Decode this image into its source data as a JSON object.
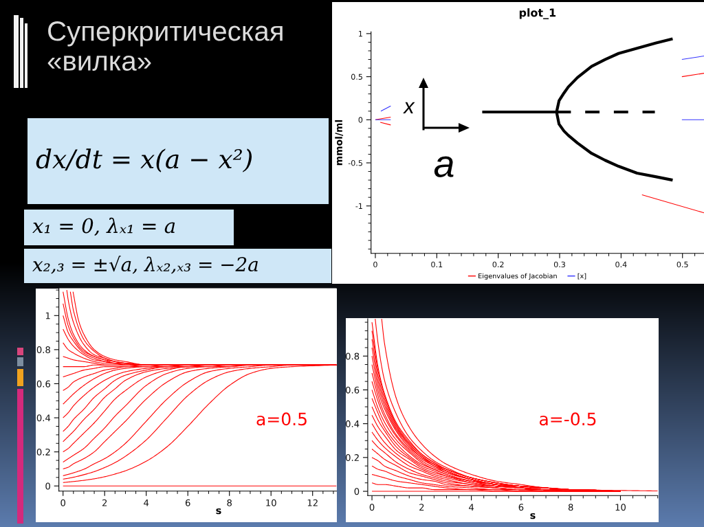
{
  "chart_data": [
    {
      "type": "other",
      "title": "Суперкритическая «вилка»",
      "annotations": [
        "dx/dt = x(a − x²)",
        "x₁ = 0, λₓ₁ = a",
        "x₂,₃ = ±√a, λₓ₂,ₓ₃ = −2a"
      ]
    },
    {
      "type": "line",
      "title": "plot_1",
      "ylabel": "mmol/ml",
      "xlim": [
        -0.007,
        0.535
      ],
      "ylim": [
        -1.55,
        1.02
      ],
      "xticks": [
        0,
        0.1,
        0.2,
        0.3,
        0.4,
        0.5
      ],
      "yticks": [
        -1,
        -0.5,
        0,
        0.5,
        1
      ],
      "legend": "bottom",
      "annotations": [
        "x",
        "a"
      ],
      "series": [
        {
          "name": "Eigenvalues of Jacobian",
          "color": "#ff0000",
          "x": [
            0,
            0.025
          ],
          "values": [
            0,
            0.03
          ]
        },
        {
          "color": "#ff0000",
          "x": [
            0.008,
            0.025
          ],
          "values": [
            -0.03,
            -0.06
          ]
        },
        {
          "color": "#ff0000",
          "x": [
            0.499,
            0.535
          ],
          "values": [
            0.5,
            0.54
          ]
        },
        {
          "color": "#ff0000",
          "x": [
            0.434,
            0.535
          ],
          "values": [
            -0.87,
            -1.08
          ]
        },
        {
          "name": "[x]",
          "color": "#3333ff",
          "x": [
            0,
            0.025
          ],
          "values": [
            0,
            0
          ]
        },
        {
          "color": "#3333ff",
          "x": [
            0.009,
            0.025
          ],
          "values": [
            0.1,
            0.16
          ]
        },
        {
          "color": "#3333ff",
          "x": [
            0.499,
            0.535
          ],
          "values": [
            0.7,
            0.74
          ]
        },
        {
          "color": "#3333ff",
          "x": [
            0.499,
            0.535
          ],
          "values": [
            0,
            0
          ]
        },
        {
          "color": "#000000",
          "x": [
            0.174,
            0.295
          ],
          "values": [
            0.09,
            0.09
          ]
        },
        {
          "color": "#000000",
          "line_style": "dashed",
          "x": [
            0.295,
            0.455
          ],
          "values": [
            0.09,
            0.09
          ]
        },
        {
          "color": "#000000",
          "x": [
            0.484,
            0.456,
            0.426,
            0.396,
            0.374,
            0.352,
            0.329,
            0.314,
            0.307,
            0.299,
            0.295,
            0.299,
            0.307,
            0.314,
            0.329,
            0.352,
            0.374,
            0.396,
            0.426,
            0.456,
            0.484
          ],
          "values": [
            0.94,
            0.89,
            0.83,
            0.77,
            0.7,
            0.62,
            0.49,
            0.38,
            0.31,
            0.22,
            0.09,
            -0.05,
            -0.13,
            -0.18,
            -0.27,
            -0.39,
            -0.47,
            -0.54,
            -0.62,
            -0.66,
            -0.7
          ]
        }
      ]
    },
    {
      "type": "line",
      "xlabel": "s",
      "color": "#ff0000",
      "xlim": [
        -0.2,
        13.15
      ],
      "ylim": [
        -0.03,
        1.16
      ],
      "xticks": [
        0,
        2,
        4,
        6,
        8,
        10,
        12
      ],
      "yticks": [
        0,
        0.2,
        0.4,
        0.6,
        0.8,
        1
      ],
      "annotations": [
        "a=0.5"
      ],
      "x": [
        0,
        0.25,
        0.5,
        1,
        1.5,
        2,
        2.5,
        3,
        4,
        5,
        6,
        7,
        8,
        9,
        10,
        11,
        13.15
      ],
      "series": [
        {
          "values": [
            0,
            0,
            0,
            0,
            0,
            0,
            0,
            0,
            0,
            0,
            0,
            0,
            0,
            0,
            0,
            0,
            0
          ]
        },
        {
          "values": [
            0.02,
            0.023,
            0.026,
            0.033,
            0.042,
            0.054,
            0.07,
            0.089,
            0.145,
            0.23,
            0.35,
            0.48,
            0.59,
            0.66,
            0.69,
            0.7,
            0.71
          ]
        },
        {
          "values": [
            0.04,
            0.045,
            0.051,
            0.066,
            0.084,
            0.108,
            0.137,
            0.174,
            0.27,
            0.4,
            0.53,
            0.62,
            0.67,
            0.69,
            0.7,
            0.71,
            0.71
          ]
        },
        {
          "values": [
            0.06,
            0.068,
            0.077,
            0.098,
            0.13,
            0.16,
            0.2,
            0.25,
            0.38,
            0.51,
            0.61,
            0.67,
            0.69,
            0.7,
            0.71,
            0.71,
            0.71
          ]
        },
        {
          "values": [
            0.1,
            0.11,
            0.13,
            0.16,
            0.2,
            0.26,
            0.32,
            0.38,
            0.51,
            0.61,
            0.67,
            0.69,
            0.7,
            0.71,
            0.71,
            0.71,
            0.71
          ]
        },
        {
          "values": [
            0.14,
            0.16,
            0.18,
            0.22,
            0.28,
            0.34,
            0.41,
            0.47,
            0.59,
            0.66,
            0.69,
            0.7,
            0.7,
            0.71,
            0.71,
            0.71,
            0.71
          ]
        },
        {
          "values": [
            0.2,
            0.22,
            0.25,
            0.31,
            0.37,
            0.44,
            0.51,
            0.56,
            0.64,
            0.68,
            0.7,
            0.7,
            0.71,
            0.71,
            0.71,
            0.71,
            0.71
          ]
        },
        {
          "values": [
            0.26,
            0.29,
            0.32,
            0.39,
            0.45,
            0.52,
            0.57,
            0.62,
            0.67,
            0.69,
            0.7,
            0.71,
            0.71,
            0.71,
            0.71,
            0.71,
            0.71
          ]
        },
        {
          "values": [
            0.32,
            0.35,
            0.39,
            0.45,
            0.52,
            0.57,
            0.62,
            0.65,
            0.68,
            0.7,
            0.7,
            0.71,
            0.71,
            0.71,
            0.71,
            0.71,
            0.71
          ]
        },
        {
          "values": [
            0.4,
            0.43,
            0.47,
            0.53,
            0.58,
            0.62,
            0.65,
            0.67,
            0.69,
            0.7,
            0.71,
            0.71,
            0.71,
            0.71,
            0.71,
            0.71,
            0.71
          ]
        },
        {
          "values": [
            0.48,
            0.51,
            0.54,
            0.59,
            0.63,
            0.66,
            0.68,
            0.69,
            0.7,
            0.7,
            0.71,
            0.71,
            0.71,
            0.71,
            0.71,
            0.71,
            0.71
          ]
        },
        {
          "values": [
            0.56,
            0.58,
            0.61,
            0.64,
            0.66,
            0.68,
            0.69,
            0.7,
            0.7,
            0.71,
            0.71,
            0.71,
            0.71,
            0.71,
            0.71,
            0.71,
            0.71
          ]
        },
        {
          "values": [
            0.64,
            0.65,
            0.66,
            0.68,
            0.69,
            0.7,
            0.7,
            0.7,
            0.71,
            0.71,
            0.71,
            0.71,
            0.71,
            0.71,
            0.71,
            0.71,
            0.71
          ]
        },
        {
          "values": [
            0.7,
            0.7,
            0.7,
            0.7,
            0.71,
            0.71,
            0.71,
            0.71,
            0.71,
            0.71,
            0.71,
            0.71,
            0.71,
            0.71,
            0.71,
            0.71,
            0.71
          ]
        },
        {
          "values": [
            0.76,
            0.75,
            0.74,
            0.73,
            0.72,
            0.71,
            0.71,
            0.71,
            0.71,
            0.71,
            0.71,
            0.71,
            0.71,
            0.71,
            0.71,
            0.71,
            0.71
          ]
        },
        {
          "values": [
            0.84,
            0.8,
            0.78,
            0.75,
            0.73,
            0.72,
            0.72,
            0.71,
            0.71,
            0.71,
            0.71,
            0.71,
            0.71,
            0.71,
            0.71,
            0.71,
            0.71
          ]
        },
        {
          "values": [
            0.92,
            0.86,
            0.82,
            0.77,
            0.74,
            0.73,
            0.72,
            0.71,
            0.71,
            0.71,
            0.71,
            0.71,
            0.71,
            0.71,
            0.71,
            0.71,
            0.71
          ]
        },
        {
          "values": [
            1,
            0.9,
            0.85,
            0.78,
            0.75,
            0.73,
            0.72,
            0.72,
            0.71,
            0.71,
            0.71,
            0.71,
            0.71,
            0.71,
            0.71,
            0.71,
            0.71
          ]
        },
        {
          "values": [
            1.07,
            0.94,
            0.87,
            0.79,
            0.76,
            0.74,
            0.72,
            0.72,
            0.71,
            0.71,
            0.71,
            0.71,
            0.71,
            0.71,
            0.71,
            0.71,
            0.71
          ]
        },
        {
          "values": [
            1.14,
            0.98,
            0.89,
            0.8,
            0.76,
            0.74,
            0.73,
            0.72,
            0.71,
            0.71,
            0.71,
            0.71,
            0.71,
            0.71,
            0.71,
            0.71,
            0.71
          ]
        },
        {
          "x": [
            0.18,
            0.25,
            0.5,
            1,
            1.5,
            2,
            2.5,
            3,
            4,
            5,
            13.15
          ],
          "values": [
            1.15,
            1.09,
            0.96,
            0.83,
            0.77,
            0.75,
            0.73,
            0.72,
            0.71,
            0.71,
            0.71
          ]
        },
        {
          "x": [
            0.35,
            0.5,
            1,
            1.5,
            2,
            2.5,
            3,
            4,
            5,
            13.15
          ],
          "values": [
            1.14,
            1.03,
            0.86,
            0.79,
            0.75,
            0.73,
            0.72,
            0.71,
            0.71,
            0.71
          ]
        },
        {
          "x": [
            0.48,
            0.75,
            1,
            1.5,
            2,
            2.5,
            3,
            4,
            5,
            6,
            13.15
          ],
          "values": [
            1.14,
            0.97,
            0.89,
            0.8,
            0.76,
            0.74,
            0.73,
            0.71,
            0.71,
            0.71,
            0.71
          ]
        }
      ]
    },
    {
      "type": "line",
      "xlabel": "s",
      "color": "#ff0000",
      "xlim": [
        -0.17,
        11.5
      ],
      "ylim": [
        -0.025,
        1.02
      ],
      "xticks": [
        0,
        2,
        4,
        6,
        8,
        10
      ],
      "yticks": [
        0,
        0.2,
        0.4,
        0.6,
        0.8
      ],
      "annotations": [
        "a=-0.5"
      ],
      "x": [
        0,
        0.25,
        0.5,
        1,
        1.5,
        2,
        2.5,
        3,
        4,
        5,
        6,
        7,
        8,
        10
      ],
      "series": [
        {
          "values": [
            0,
            0,
            0,
            0,
            0,
            0,
            0,
            0,
            0,
            0,
            0,
            0,
            0,
            0
          ]
        },
        {
          "values": [
            0.05,
            0.04,
            0.04,
            0.03,
            0.02,
            0.02,
            0.01,
            0.01,
            0.01,
            0,
            0,
            0,
            0,
            0
          ]
        },
        {
          "values": [
            0.1,
            0.09,
            0.08,
            0.06,
            0.05,
            0.04,
            0.03,
            0.02,
            0.01,
            0.01,
            0,
            0,
            0,
            0
          ]
        },
        {
          "values": [
            0.15,
            0.13,
            0.12,
            0.09,
            0.07,
            0.05,
            0.04,
            0.03,
            0.02,
            0.01,
            0.01,
            0,
            0,
            0
          ]
        },
        {
          "values": [
            0.2,
            0.18,
            0.15,
            0.12,
            0.09,
            0.07,
            0.06,
            0.04,
            0.03,
            0.02,
            0.01,
            0.01,
            0,
            0
          ]
        },
        {
          "values": [
            0.25,
            0.22,
            0.19,
            0.15,
            0.11,
            0.09,
            0.07,
            0.05,
            0.03,
            0.02,
            0.01,
            0.01,
            0,
            0
          ]
        },
        {
          "values": [
            0.3,
            0.26,
            0.23,
            0.17,
            0.13,
            0.1,
            0.08,
            0.06,
            0.04,
            0.02,
            0.01,
            0.01,
            0.01,
            0
          ]
        },
        {
          "values": [
            0.35,
            0.3,
            0.26,
            0.2,
            0.15,
            0.12,
            0.09,
            0.07,
            0.04,
            0.03,
            0.02,
            0.01,
            0.01,
            0
          ]
        },
        {
          "values": [
            0.4,
            0.34,
            0.29,
            0.22,
            0.17,
            0.13,
            0.1,
            0.08,
            0.05,
            0.03,
            0.02,
            0.01,
            0.01,
            0
          ]
        },
        {
          "values": [
            0.45,
            0.38,
            0.33,
            0.24,
            0.19,
            0.14,
            0.11,
            0.09,
            0.05,
            0.03,
            0.02,
            0.01,
            0.01,
            0
          ]
        },
        {
          "values": [
            0.5,
            0.42,
            0.36,
            0.26,
            0.2,
            0.15,
            0.12,
            0.09,
            0.06,
            0.03,
            0.02,
            0.01,
            0.01,
            0
          ]
        },
        {
          "values": [
            0.55,
            0.46,
            0.38,
            0.28,
            0.21,
            0.16,
            0.13,
            0.1,
            0.06,
            0.04,
            0.02,
            0.01,
            0.01,
            0
          ]
        },
        {
          "values": [
            0.6,
            0.49,
            0.41,
            0.3,
            0.23,
            0.17,
            0.13,
            0.1,
            0.06,
            0.04,
            0.02,
            0.01,
            0.01,
            0
          ]
        },
        {
          "values": [
            0.65,
            0.53,
            0.44,
            0.32,
            0.24,
            0.18,
            0.14,
            0.11,
            0.07,
            0.04,
            0.02,
            0.01,
            0.01,
            0
          ]
        },
        {
          "values": [
            0.7,
            0.56,
            0.46,
            0.33,
            0.25,
            0.19,
            0.15,
            0.11,
            0.07,
            0.04,
            0.02,
            0.02,
            0.01,
            0
          ]
        },
        {
          "values": [
            0.75,
            0.59,
            0.49,
            0.35,
            0.26,
            0.2,
            0.15,
            0.12,
            0.07,
            0.04,
            0.03,
            0.02,
            0.01,
            0
          ]
        },
        {
          "values": [
            0.8,
            0.62,
            0.51,
            0.36,
            0.27,
            0.2,
            0.16,
            0.12,
            0.07,
            0.04,
            0.03,
            0.02,
            0.01,
            0
          ]
        },
        {
          "values": [
            0.85,
            0.65,
            0.53,
            0.37,
            0.28,
            0.21,
            0.16,
            0.12,
            0.07,
            0.04,
            0.03,
            0.02,
            0.01,
            0
          ]
        },
        {
          "values": [
            0.9,
            0.68,
            0.55,
            0.38,
            0.28,
            0.21,
            0.16,
            0.13,
            0.08,
            0.05,
            0.03,
            0.02,
            0.01,
            0
          ]
        },
        {
          "values": [
            0.95,
            0.71,
            0.57,
            0.39,
            0.29,
            0.22,
            0.17,
            0.13,
            0.08,
            0.05,
            0.03,
            0.02,
            0.01,
            0
          ]
        },
        {
          "values": [
            1,
            0.73,
            0.58,
            0.4,
            0.3,
            0.22,
            0.17,
            0.13,
            0.08,
            0.05,
            0.03,
            0.02,
            0.01,
            0
          ]
        },
        {
          "x": [
            0.13,
            0.25,
            0.5,
            1,
            1.5,
            2,
            2.5,
            3,
            4,
            5,
            6,
            7,
            8,
            10
          ],
          "values": [
            1.02,
            0.87,
            0.66,
            0.45,
            0.32,
            0.24,
            0.18,
            0.14,
            0.08,
            0.05,
            0.03,
            0.02,
            0.01,
            0
          ]
        },
        {
          "x": [
            0.39,
            0.5,
            1,
            1.5,
            2,
            2.5,
            3,
            4,
            5,
            6,
            7,
            8,
            10,
            11.5
          ],
          "values": [
            1.02,
            0.88,
            0.54,
            0.38,
            0.28,
            0.21,
            0.16,
            0.1,
            0.06,
            0.04,
            0.02,
            0.01,
            0.005,
            0.002
          ]
        }
      ]
    }
  ]
}
